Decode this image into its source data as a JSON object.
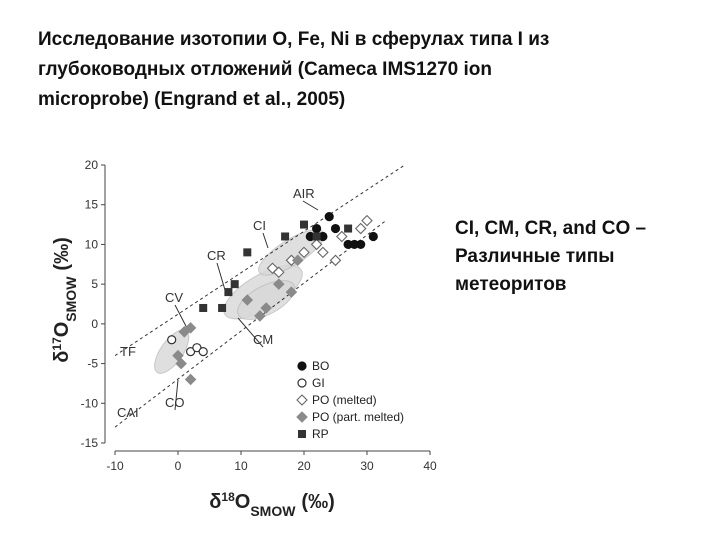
{
  "slide": {
    "title_lines": [
      "Исследование изотопии O, Fe, Ni  в сферулах типа I из",
      "глубоководных отложений  (Cameca IMS1270 ion",
      "microprobe) (Engrand et al., 2005)"
    ],
    "side_lines": [
      "CI, CM, CR, and CO –",
      "Различные типы",
      "метеоритов"
    ]
  },
  "chart_data": {
    "type": "scatter",
    "xlabel": {
      "delta": "δ",
      "iso": "18",
      "base": "O",
      "sub": "SMOW",
      "unit": "(‰)"
    },
    "ylabel": {
      "delta": "δ",
      "iso": "17",
      "base": "O",
      "sub": "SMOW",
      "unit": "(‰)"
    },
    "xlim": [
      -10,
      40
    ],
    "xticks": [
      -10,
      0,
      10,
      20,
      30,
      40
    ],
    "ylim": [
      -15,
      20
    ],
    "yticks": [
      -15,
      -10,
      -5,
      0,
      5,
      10,
      15,
      20
    ],
    "legend": "lower right",
    "series": [
      {
        "name": "BO",
        "marker": "circle",
        "color": "#111111",
        "x": [
          21,
          22,
          23,
          24,
          25,
          27,
          28,
          29,
          31
        ],
        "values": [
          11,
          12,
          11,
          13.5,
          12,
          10,
          10,
          10,
          11
        ]
      },
      {
        "name": "GI",
        "marker": "open-circle",
        "color": "#333333",
        "x": [
          -1,
          2,
          3,
          4
        ],
        "values": [
          -2,
          -3.5,
          -3,
          -3.5
        ]
      },
      {
        "name": "PO (melted)",
        "marker": "open-diamond",
        "color": "#666666",
        "x": [
          15,
          16,
          18,
          20,
          22,
          23,
          25,
          26,
          29,
          30
        ],
        "values": [
          7,
          6.5,
          8,
          9,
          10,
          9,
          8,
          11,
          12,
          13
        ]
      },
      {
        "name": "PO (part. melted)",
        "marker": "diamond",
        "color": "#8a8a8a",
        "x": [
          0,
          0.5,
          1,
          2,
          2,
          11,
          13,
          14,
          16,
          18,
          19
        ],
        "values": [
          -4,
          -5,
          -1,
          -0.5,
          -7,
          3,
          1,
          2,
          5,
          4,
          8
        ]
      },
      {
        "name": "RP",
        "marker": "square",
        "color": "#333333",
        "x": [
          4,
          7,
          8,
          9,
          11,
          17,
          20,
          22,
          27
        ],
        "values": [
          2,
          2,
          4,
          5,
          9,
          11,
          12.5,
          11,
          12
        ]
      }
    ],
    "reference_lines": [
      {
        "name": "TF",
        "x": [
          -10,
          36
        ],
        "values": [
          -4,
          20
        ]
      },
      {
        "name": "CAI",
        "x": [
          -10,
          33
        ],
        "values": [
          -13,
          13
        ]
      }
    ],
    "annotations": [
      "AIR",
      "CI",
      "CR",
      "CV",
      "CM",
      "CO"
    ]
  }
}
